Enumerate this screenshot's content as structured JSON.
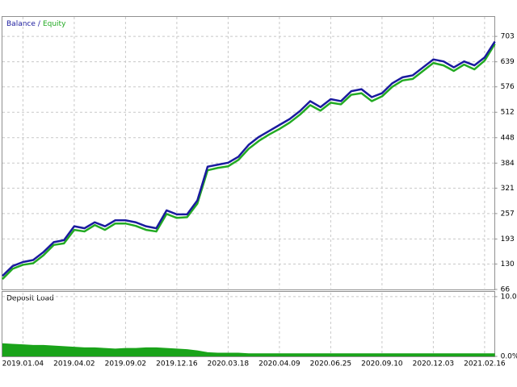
{
  "chart_data": [
    {
      "type": "line",
      "legend_separator": "/",
      "categories": [
        null,
        null,
        "2019.01.04",
        null,
        null,
        null,
        null,
        "2019.04.02",
        null,
        null,
        null,
        null,
        "2019.09.02",
        null,
        null,
        null,
        null,
        "2019.12.16",
        null,
        null,
        null,
        null,
        "2020.03.18",
        null,
        null,
        null,
        null,
        "2020.04.09",
        null,
        null,
        null,
        null,
        "2020.06.25",
        null,
        null,
        null,
        null,
        "2020.09.10",
        null,
        null,
        null,
        null,
        "2020.12.03",
        null,
        null,
        null,
        null,
        "2021.02.16",
        null
      ],
      "series": [
        {
          "name": "Balance",
          "color": "#1a1a9e",
          "values": [
            100,
            125,
            135,
            140,
            160,
            185,
            190,
            225,
            220,
            235,
            225,
            240,
            240,
            235,
            225,
            220,
            265,
            255,
            255,
            290,
            375,
            380,
            385,
            400,
            430,
            450,
            465,
            480,
            495,
            515,
            540,
            525,
            545,
            540,
            565,
            570,
            550,
            560,
            585,
            600,
            605,
            625,
            645,
            640,
            625,
            640,
            630,
            650,
            690
          ]
        },
        {
          "name": "Equity",
          "color": "#22aa22",
          "values": [
            92,
            118,
            128,
            132,
            152,
            178,
            182,
            216,
            212,
            228,
            216,
            232,
            232,
            226,
            216,
            212,
            256,
            246,
            248,
            282,
            366,
            372,
            376,
            392,
            420,
            440,
            456,
            470,
            486,
            506,
            530,
            516,
            536,
            532,
            556,
            560,
            540,
            552,
            576,
            592,
            596,
            616,
            636,
            630,
            616,
            632,
            620,
            642,
            684
          ]
        }
      ],
      "ylim": [
        66,
        754
      ],
      "yticks": [
        703,
        639,
        576,
        512,
        448,
        384,
        321,
        257,
        193,
        130,
        66
      ],
      "grid": true
    },
    {
      "type": "area",
      "title": "Deposit Load",
      "color": "#1aa31a",
      "values": [
        2.2,
        2.1,
        2.0,
        1.9,
        1.9,
        1.8,
        1.7,
        1.6,
        1.5,
        1.5,
        1.4,
        1.3,
        1.4,
        1.4,
        1.5,
        1.5,
        1.4,
        1.3,
        1.2,
        1.0,
        0.7,
        0.6,
        0.6,
        0.6,
        0.5,
        0.5,
        0.5,
        0.5,
        0.5,
        0.5,
        0.5,
        0.5,
        0.5,
        0.5,
        0.5,
        0.5,
        0.5,
        0.5,
        0.5,
        0.5,
        0.5,
        0.5,
        0.5,
        0.5,
        0.5,
        0.5,
        0.5,
        0.5,
        0.5
      ],
      "ylim": [
        0,
        10.8
      ],
      "yticks": [
        {
          "value": 10,
          "label": "10.0%"
        },
        {
          "value": 0,
          "label": "0.0%"
        }
      ],
      "grid": true
    }
  ]
}
